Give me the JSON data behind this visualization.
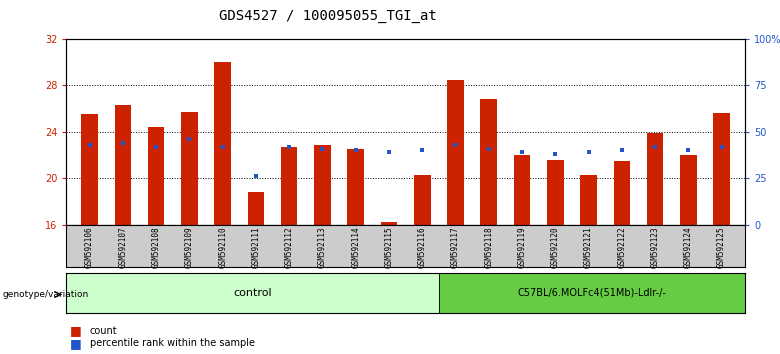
{
  "title": "GDS4527 / 100095055_TGI_at",
  "samples": [
    "GSM592106",
    "GSM592107",
    "GSM592108",
    "GSM592109",
    "GSM592110",
    "GSM592111",
    "GSM592112",
    "GSM592113",
    "GSM592114",
    "GSM592115",
    "GSM592116",
    "GSM592117",
    "GSM592118",
    "GSM592119",
    "GSM592120",
    "GSM592121",
    "GSM592122",
    "GSM592123",
    "GSM592124",
    "GSM592125"
  ],
  "count_values": [
    25.5,
    26.3,
    24.4,
    25.7,
    30.0,
    18.8,
    22.7,
    22.9,
    22.5,
    16.2,
    20.3,
    28.5,
    26.8,
    22.0,
    21.6,
    20.3,
    21.5,
    23.9,
    22.0,
    25.6
  ],
  "pct_marker_values": [
    43,
    44,
    42,
    46,
    42,
    26,
    42,
    41,
    40,
    39,
    40,
    43,
    41,
    39,
    38,
    39,
    40,
    42,
    40,
    42
  ],
  "ylim": [
    16,
    32
  ],
  "y2lim": [
    0,
    100
  ],
  "yticks": [
    16,
    20,
    24,
    28,
    32
  ],
  "y2ticks": [
    0,
    25,
    50,
    75,
    100
  ],
  "y2ticklabels": [
    "0",
    "25",
    "50",
    "75",
    "100%"
  ],
  "bar_color": "#cc2200",
  "pct_color": "#2255cc",
  "axis_color_left": "#cc2200",
  "axis_color_right": "#2255cc",
  "control_label": "control",
  "treatment_label": "C57BL/6.MOLFc4(51Mb)-Ldlr-/-",
  "control_color": "#ccffcc",
  "treatment_color": "#66cc44",
  "genotype_label": "genotype/variation",
  "legend_count": "count",
  "legend_pct": "percentile rank within the sample",
  "title_fontsize": 10,
  "tick_fontsize": 7,
  "bar_width": 0.5,
  "n_control": 11,
  "xtick_bg": "#cccccc"
}
